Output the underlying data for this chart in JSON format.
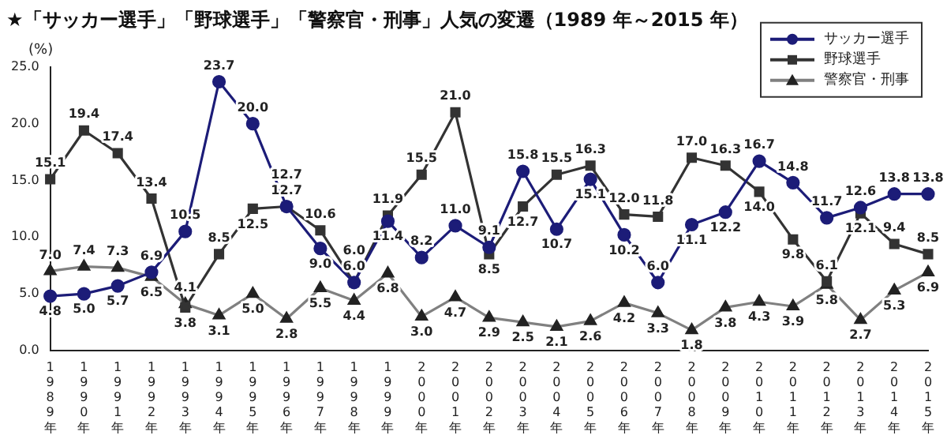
{
  "chart_data": {
    "type": "line",
    "title": "★「サッカー選手」「野球選手」「警察官・刑事」人気の変遷（1989 年～2015 年）",
    "ylabel": "(%)",
    "categories": [
      "1989年",
      "1990年",
      "1991年",
      "1992年",
      "1993年",
      "1994年",
      "1995年",
      "1996年",
      "1997年",
      "1998年",
      "1999年",
      "2000年",
      "2001年",
      "2002年",
      "2003年",
      "2004年",
      "2005年",
      "2006年",
      "2007年",
      "2008年",
      "2009年",
      "2010年",
      "2011年",
      "2012年",
      "2013年",
      "2014年",
      "2015年"
    ],
    "ylim": [
      0,
      25
    ],
    "yticks": [
      {
        "value": 0,
        "label": "0.0"
      },
      {
        "value": 5,
        "label": "5.0"
      },
      {
        "value": 10,
        "label": "10.0"
      },
      {
        "value": 15,
        "label": "15.0"
      },
      {
        "value": 20,
        "label": "20.0"
      },
      {
        "value": 25,
        "label": "25.0"
      }
    ],
    "grid": false,
    "legend": "top right",
    "line_style": "solid",
    "series": [
      {
        "name": "サッカー選手",
        "color": "#1c1c78",
        "marker": "circle",
        "values": [
          4.8,
          5.0,
          5.7,
          6.9,
          10.5,
          23.7,
          20.0,
          12.7,
          9.0,
          6.0,
          11.4,
          8.2,
          11.0,
          9.1,
          15.8,
          10.7,
          15.1,
          10.2,
          6.0,
          11.1,
          12.2,
          16.7,
          14.8,
          11.7,
          12.6,
          13.8,
          13.8
        ],
        "value_labels": [
          "4.8",
          "5.0",
          "5.7",
          "6.9",
          "10.5",
          "23.7",
          "20.0",
          "12.7",
          "9.0",
          "6.0",
          "11.4",
          "8.2",
          "11.0",
          "9.1",
          "15.8",
          "10.7",
          "15.1",
          "10.2",
          "6.0",
          "11.1",
          "12.2",
          "16.7",
          "14.8",
          "11.7",
          "12.6",
          "13.8",
          "13.8"
        ]
      },
      {
        "name": "野球選手",
        "color": "#333333",
        "marker": "square",
        "values": [
          15.1,
          19.4,
          17.4,
          13.4,
          3.8,
          8.5,
          12.5,
          12.7,
          10.6,
          6.0,
          11.9,
          15.5,
          21.0,
          8.5,
          12.7,
          15.5,
          16.3,
          12.0,
          11.8,
          17.0,
          16.3,
          14.0,
          9.8,
          6.1,
          12.1,
          9.4,
          8.5
        ],
        "value_labels": [
          "15.1",
          "19.4",
          "17.4",
          "13.4",
          "3.8",
          "8.5",
          "12.5",
          "12.7",
          "10.6",
          "6.0",
          "11.9",
          "15.5",
          "21.0",
          "8.5",
          "12.7",
          "15.5",
          "16.3",
          "12.0",
          "11.8",
          "17.0",
          "16.3",
          "14.0",
          "9.8",
          "6.1",
          "12.1",
          "9.4",
          "8.5"
        ]
      },
      {
        "name": "警察官・刑事",
        "color": "#808080",
        "marker": "triangle",
        "values": [
          7.0,
          7.4,
          7.3,
          6.5,
          4.1,
          3.1,
          5.0,
          2.8,
          5.5,
          4.4,
          6.8,
          3.0,
          4.7,
          2.9,
          2.5,
          2.1,
          2.6,
          4.2,
          3.3,
          1.8,
          3.8,
          4.3,
          3.9,
          5.8,
          2.7,
          5.3,
          6.9
        ],
        "value_labels": [
          "7.0",
          "7.4",
          "7.3",
          "6.5",
          "4.1",
          "3.1",
          "5.0",
          "2.8",
          "5.5",
          "4.4",
          "6.8",
          "3.0",
          "4.7",
          "2.9",
          "2.5",
          "2.1",
          "2.6",
          "4.2",
          "3.3",
          "1.8",
          "3.8",
          "4.3",
          "3.9",
          "5.8",
          "2.7",
          "5.3",
          "6.9"
        ]
      }
    ]
  }
}
